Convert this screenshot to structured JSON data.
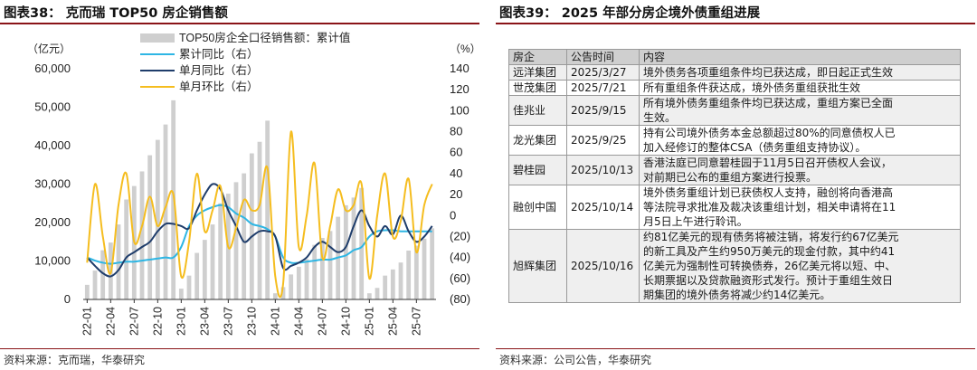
{
  "left_panel": {
    "title": "图表38：  克而瑞 TOP50 房企销售额",
    "source": "资料来源：克而瑞，华泰研究"
  },
  "right_panel": {
    "title": "图表39：  2025 年部分房企境外债重组进展",
    "source": "资料来源：公司公告，华泰研究",
    "headers": [
      "房企",
      "公告时间",
      "内容"
    ],
    "rows": [
      {
        "company": "远洋集团",
        "date": "2025/3/27",
        "content": [
          "境外债务各项重组条件均已获达成，即日起正式生效"
        ]
      },
      {
        "company": "世茂集团",
        "date": "2025/7/21",
        "content": [
          "所有重组条件获达成，境外债务重组获批生效"
        ]
      },
      {
        "company": "佳兆业",
        "date": "2025/9/15",
        "content": [
          "所有境外债务重组条件均已获达成，重组方案已全面",
          "生效。"
        ]
      },
      {
        "company": "龙光集团",
        "date": "2025/9/25",
        "content": [
          "持有公司境外债务本金总额超过80%的同意债权人已",
          "加入经修订的整体CSA（债务重组支持协议）。"
        ]
      },
      {
        "company": "碧桂园",
        "date": "2025/10/13",
        "content": [
          "香港法庭已同意碧桂园于11月5日召开债权人会议，",
          "对前期已公布的重组方案进行投票。"
        ]
      },
      {
        "company": "融创中国",
        "date": "2025/10/14",
        "content": [
          "境外债务重组计划已获债权人支持，融创将向香港高",
          "等法院寻求批准及裁决该重组计划，相关申请将在11",
          "月5日上午进行聆讯。"
        ]
      },
      {
        "company": "旭辉集团",
        "date": "2025/10/16",
        "content": [
          "约81亿美元的现有债务将被注销，将发行约67亿美元",
          "的新工具及产生约950万美元的现金付款，其中约41",
          "亿美元为强制性可转换债券，26亿美元将以短、中、",
          "长期票据以及贷款融资形式发行。预计于重组生效日",
          "期集团的境外债务将减少约14亿美元。"
        ]
      }
    ]
  },
  "colors": {
    "bars": "#cfcfcf",
    "cumulative_yoy": "#2eb6e4",
    "monthly_yoy": "#1f3d6b",
    "monthly_mom": "#f5bd1f",
    "rule": "#8a1418"
  },
  "chart_data": {
    "type": "bar",
    "left_unit": "（亿元）",
    "right_unit": "（%）",
    "left_ylim": [
      0,
      60000
    ],
    "left_ticks": [
      "0",
      "10,000",
      "20,000",
      "30,000",
      "40,000",
      "50,000",
      "60,000"
    ],
    "right_ylim": [
      -80,
      140
    ],
    "right_ticks": [
      "(80)",
      "(60)",
      "(40)",
      "(20)",
      "0",
      "20",
      "40",
      "60",
      "80",
      "100",
      "120",
      "140"
    ],
    "x_tick_labels": [
      "22-01",
      "22-04",
      "22-07",
      "22-10",
      "23-01",
      "23-04",
      "23-07",
      "23-10",
      "24-01",
      "24-04",
      "24-07",
      "24-10",
      "25-01",
      "25-04",
      "25-07"
    ],
    "legend": "top-left",
    "grid": false,
    "categories": [
      "22-01",
      "22-02",
      "22-03",
      "22-04",
      "22-05",
      "22-06",
      "22-07",
      "22-08",
      "22-09",
      "22-10",
      "22-11",
      "22-12",
      "23-01",
      "23-02",
      "23-03",
      "23-04",
      "23-05",
      "23-06",
      "23-07",
      "23-08",
      "23-09",
      "23-10",
      "23-11",
      "23-12",
      "24-01",
      "24-02",
      "24-03",
      "24-04",
      "24-05",
      "24-06",
      "24-07",
      "24-08",
      "24-09",
      "24-10",
      "24-11",
      "24-12",
      "25-01",
      "25-02",
      "25-03",
      "25-04",
      "25-05",
      "25-06",
      "25-07",
      "25-08",
      "25-09"
    ],
    "series": [
      {
        "name": "TOP50房企全口径销售额：累计值",
        "kind": "bar",
        "axis": "left",
        "values": [
          3800,
          7500,
          12800,
          14800,
          19500,
          26000,
          29500,
          33300,
          37500,
          41500,
          45500,
          51800,
          2800,
          6200,
          12100,
          15500,
          19500,
          25000,
          27500,
          30500,
          32800,
          38000,
          41000,
          46500,
          1600,
          3200,
          6500,
          8500,
          10500,
          14200,
          16000,
          17800,
          21500,
          24500,
          26500,
          29000,
          1600,
          3000,
          6200,
          7800,
          9600,
          12700,
          14000,
          15800,
          18500
        ]
      },
      {
        "name": "累计同比（右）",
        "kind": "line",
        "axis": "right",
        "values": [
          -40,
          -43,
          -45,
          -46,
          -45,
          -44,
          -44,
          -43,
          -42,
          -41,
          -40,
          -40,
          -30,
          -10,
          0,
          5,
          8,
          10,
          8,
          2,
          -2,
          -8,
          -10,
          -13,
          -20,
          -40,
          -45,
          -45,
          -44,
          -43,
          -42,
          -42,
          -40,
          -38,
          -33,
          -30,
          -20,
          -15,
          -14,
          -14,
          -15,
          -15,
          -15,
          -15,
          -15
        ]
      },
      {
        "name": "单月同比（右）",
        "kind": "line",
        "axis": "right",
        "values": [
          -40,
          -48,
          -55,
          -58,
          -52,
          -40,
          -35,
          -30,
          -25,
          -15,
          -8,
          -8,
          -10,
          -12,
          5,
          20,
          30,
          25,
          5,
          -10,
          -25,
          -20,
          -15,
          -15,
          -20,
          -50,
          -48,
          -45,
          -40,
          -30,
          -25,
          -30,
          -35,
          -30,
          -10,
          5,
          -10,
          -20,
          -10,
          -18,
          0,
          -15,
          -25,
          -20,
          -10
        ]
      },
      {
        "name": "单月环比（右）",
        "kind": "line",
        "axis": "right",
        "values": [
          -45,
          30,
          -20,
          -55,
          10,
          40,
          -25,
          -10,
          18,
          -10,
          8,
          20,
          -58,
          -25,
          40,
          -15,
          5,
          28,
          -30,
          -12,
          15,
          5,
          10,
          45,
          -58,
          -65,
          80,
          -30,
          0,
          50,
          -40,
          -10,
          25,
          5,
          10,
          30,
          -60,
          0,
          40,
          -20,
          -5,
          35,
          -35,
          10,
          30
        ]
      }
    ]
  }
}
